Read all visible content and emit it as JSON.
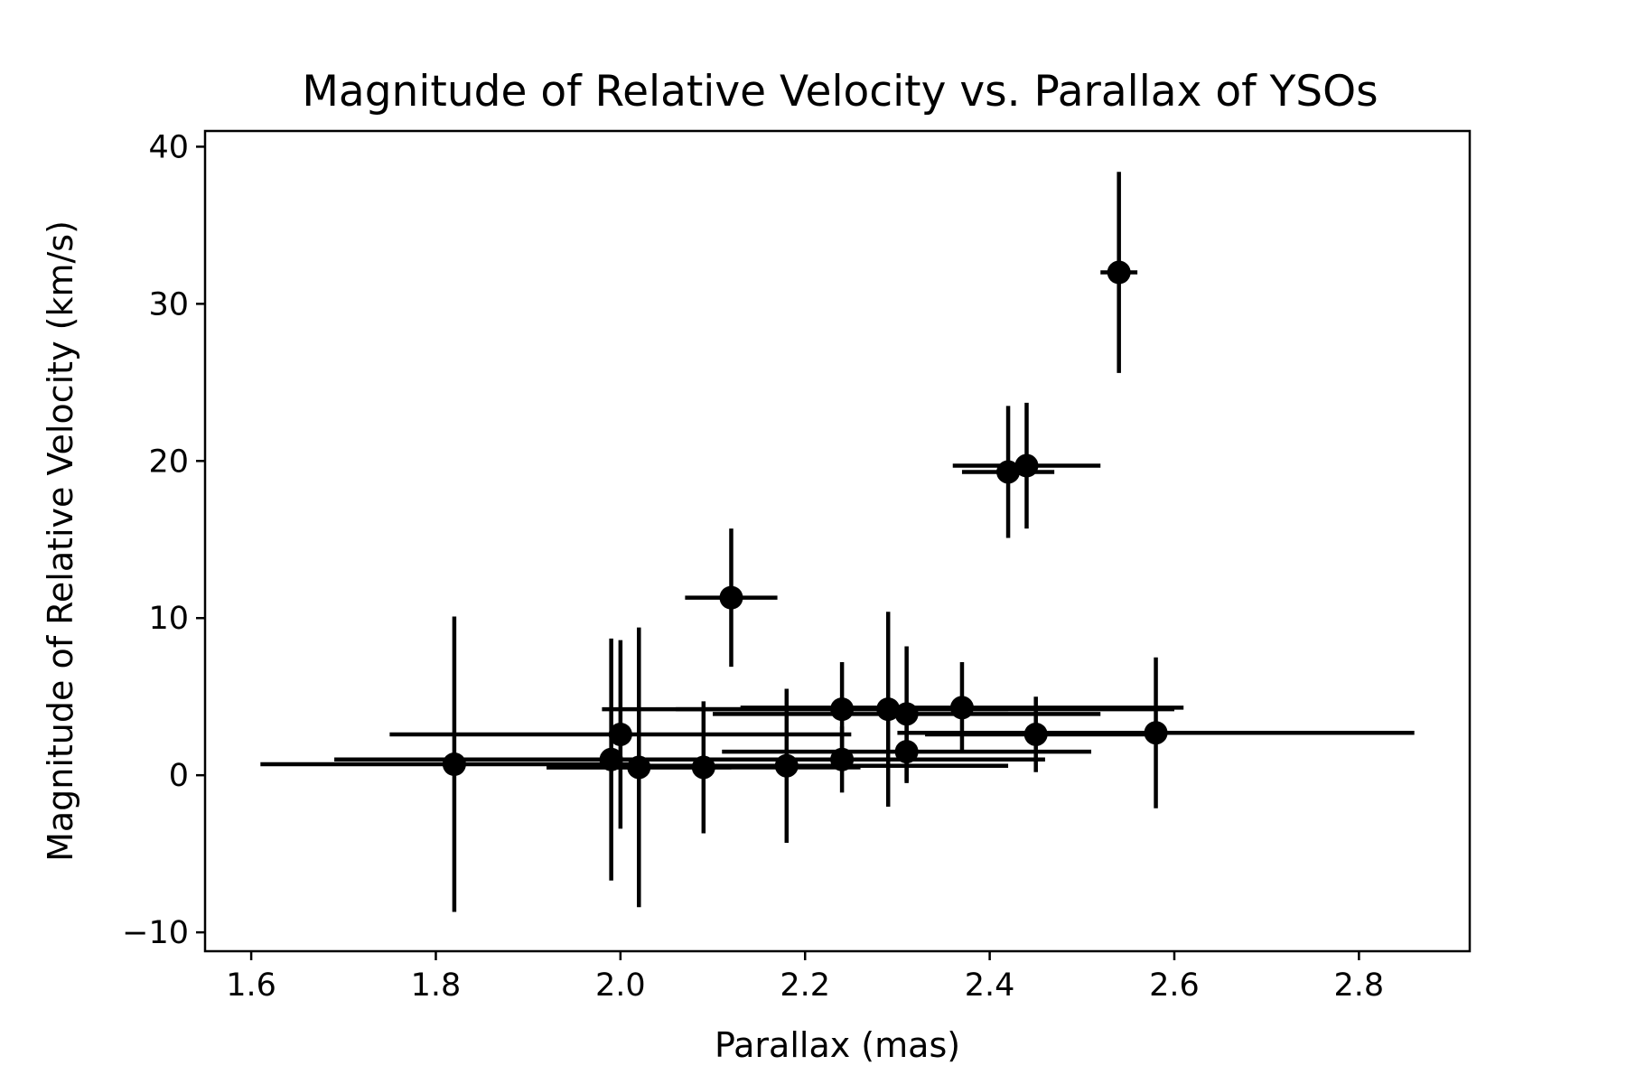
{
  "chart_data": {
    "type": "scatter",
    "title": "Magnitude of Relative Velocity vs. Parallax of YSOs",
    "xlabel": "Parallax (mas)",
    "ylabel": "Magnitude of Relative Velocity (km/s)",
    "xlim": [
      1.55,
      2.92
    ],
    "ylim": [
      -11.2,
      41.0
    ],
    "xticks": [
      1.6,
      1.8,
      2.0,
      2.2,
      2.4,
      2.6,
      2.8
    ],
    "xtick_labels": [
      "1.6",
      "1.8",
      "2.0",
      "2.2",
      "2.4",
      "2.6",
      "2.8"
    ],
    "yticks": [
      -10,
      0,
      10,
      20,
      30,
      40
    ],
    "ytick_labels": [
      "−10",
      "0",
      "10",
      "20",
      "30",
      "40"
    ],
    "grid": false,
    "legend": "none",
    "marker_color": "#000000",
    "points": [
      {
        "x": 1.82,
        "y": 0.7,
        "xerr": 0.21,
        "yerr": 9.4
      },
      {
        "x": 1.99,
        "y": 1.0,
        "xerr": 0.3,
        "yerr": 7.7
      },
      {
        "x": 2.0,
        "y": 2.6,
        "xerr": 0.25,
        "yerr": 6.0
      },
      {
        "x": 2.02,
        "y": 0.5,
        "xerr": 0.1,
        "yerr": 8.9
      },
      {
        "x": 2.09,
        "y": 0.5,
        "xerr": 0.17,
        "yerr": 4.2
      },
      {
        "x": 2.12,
        "y": 11.3,
        "xerr": 0.05,
        "yerr": 4.4
      },
      {
        "x": 2.18,
        "y": 0.6,
        "xerr": 0.24,
        "yerr": 4.9
      },
      {
        "x": 2.24,
        "y": 4.2,
        "xerr": 0.18,
        "yerr": 3.0
      },
      {
        "x": 2.24,
        "y": 1.0,
        "xerr": 0.22,
        "yerr": 2.1
      },
      {
        "x": 2.29,
        "y": 4.2,
        "xerr": 0.31,
        "yerr": 6.2
      },
      {
        "x": 2.31,
        "y": 3.9,
        "xerr": 0.21,
        "yerr": 4.3
      },
      {
        "x": 2.31,
        "y": 1.5,
        "xerr": 0.2,
        "yerr": 2.0
      },
      {
        "x": 2.37,
        "y": 4.3,
        "xerr": 0.24,
        "yerr": 2.9
      },
      {
        "x": 2.42,
        "y": 19.3,
        "xerr": 0.05,
        "yerr": 4.2
      },
      {
        "x": 2.44,
        "y": 19.7,
        "xerr": 0.08,
        "yerr": 4.0
      },
      {
        "x": 2.45,
        "y": 2.6,
        "xerr": 0.12,
        "yerr": 2.4
      },
      {
        "x": 2.54,
        "y": 32.0,
        "xerr": 0.02,
        "yerr": 6.4
      },
      {
        "x": 2.58,
        "y": 2.7,
        "xerr": 0.28,
        "yerr": 4.8
      }
    ]
  }
}
